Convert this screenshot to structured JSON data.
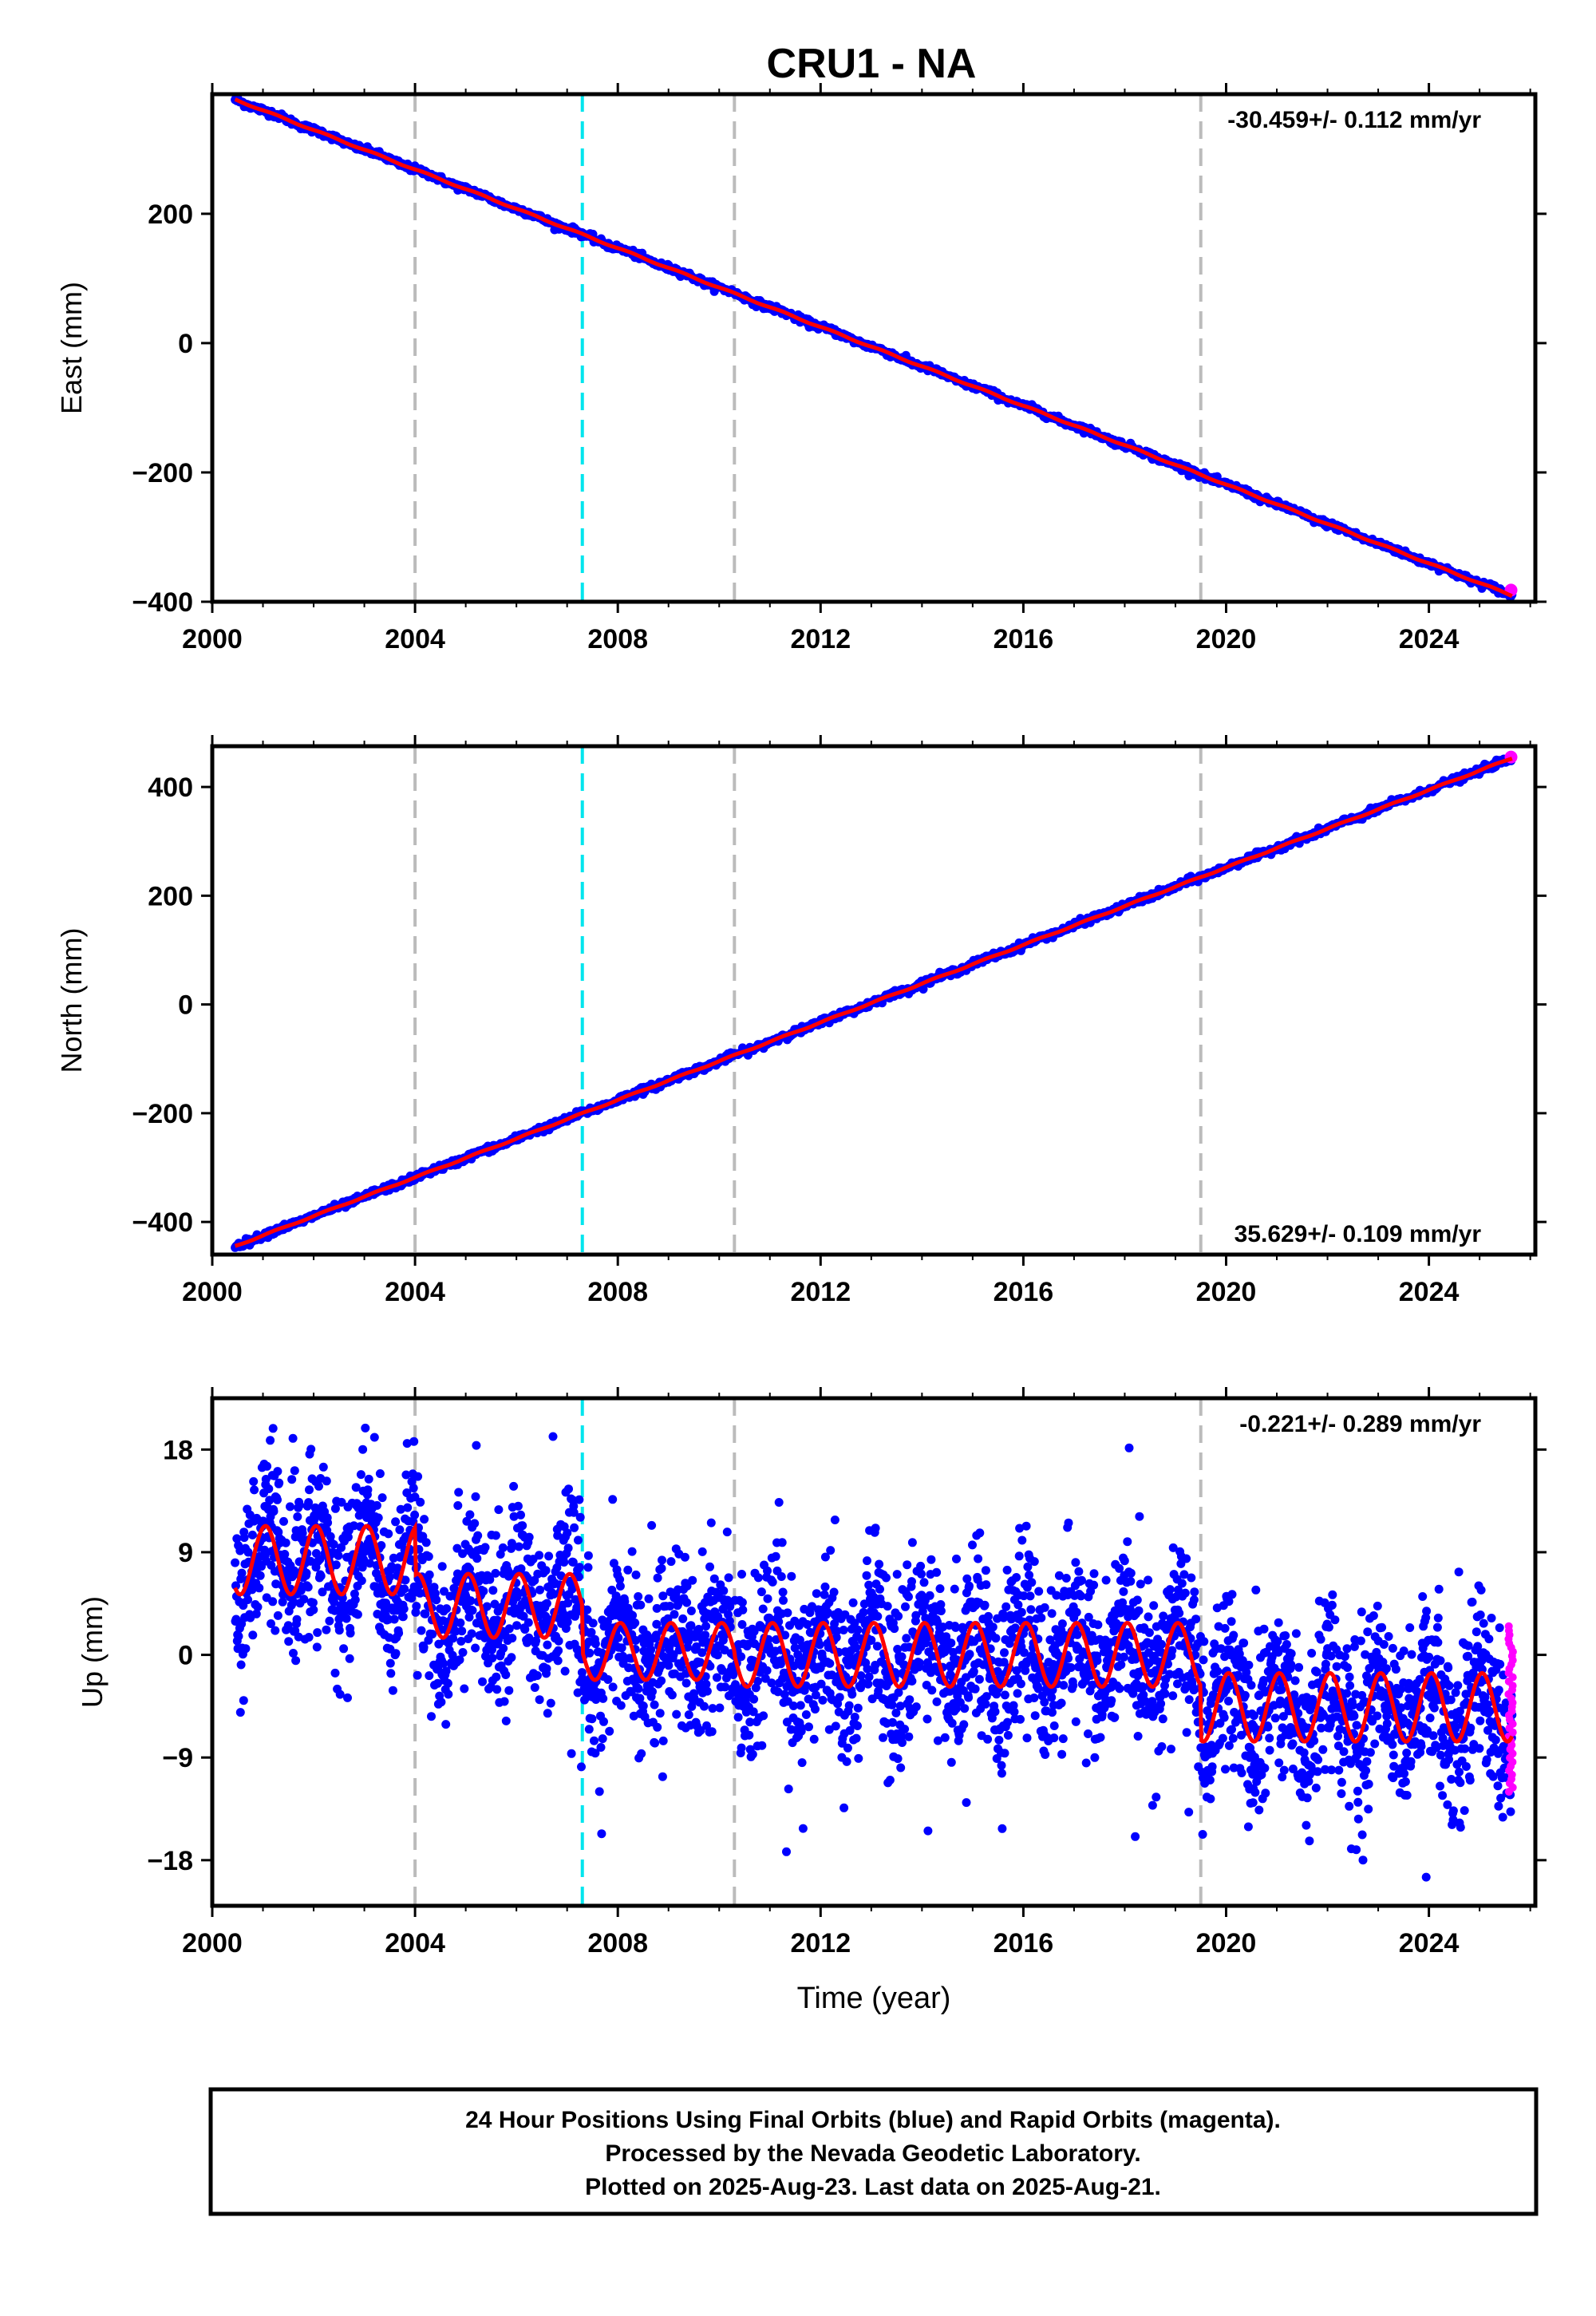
{
  "title": "CRU1 - NA",
  "colors": {
    "final": "#0000ff",
    "rapid": "#ff00ff",
    "model": "#ff0000",
    "event_gray": "#bbbbbb",
    "event_cyan": "#00e5ee"
  },
  "chart_data": [
    {
      "type": "scatter",
      "ylabel": "East (mm)",
      "xlabel": "",
      "rate_text": "-30.459+/- 0.112 mm/yr",
      "xlim": [
        2000,
        2026.1
      ],
      "ylim": [
        -400,
        385
      ],
      "yticks": [
        200,
        0,
        -200,
        -400
      ],
      "ytick_labels": [
        "200",
        "0",
        "−200",
        "−400"
      ],
      "xticks": [
        2000,
        2004,
        2008,
        2012,
        2016,
        2020,
        2024
      ],
      "xtick_labels": [
        "2000",
        "2004",
        "2008",
        "2012",
        "2016",
        "2020",
        "2024"
      ],
      "model": {
        "start": 2000.45,
        "end": 2025.64,
        "y0": 376.8,
        "rate": -30.459,
        "seasonal_amp": 1.0
      },
      "noise_mm": 2.5,
      "rapid_last": {
        "x": 2025.62,
        "y": -382
      },
      "events_gray": [
        2004.0,
        2010.3,
        2019.5
      ],
      "events_cyan": [
        2007.3
      ]
    },
    {
      "type": "scatter",
      "ylabel": "North (mm)",
      "xlabel": "",
      "rate_text": "35.629+/- 0.109 mm/yr",
      "xlim": [
        2000,
        2026.1
      ],
      "ylim": [
        -460,
        475
      ],
      "yticks": [
        400,
        200,
        0,
        -200,
        -400
      ],
      "ytick_labels": [
        "400",
        "200",
        "0",
        "−200",
        "−400"
      ],
      "xticks": [
        2000,
        2004,
        2008,
        2012,
        2016,
        2020,
        2024
      ],
      "xtick_labels": [
        "2000",
        "2004",
        "2008",
        "2012",
        "2016",
        "2020",
        "2024"
      ],
      "model": {
        "start": 2000.45,
        "end": 2025.64,
        "y0": -444.5,
        "rate": 35.629,
        "seasonal_amp": 1.0
      },
      "noise_mm": 3.0,
      "rapid_last": {
        "x": 2025.62,
        "y": 455
      },
      "events_gray": [
        2004.0,
        2010.3,
        2019.5
      ],
      "events_cyan": [
        2007.3
      ]
    },
    {
      "type": "scatter",
      "ylabel": "Up (mm)",
      "xlabel": "Time (year)",
      "rate_text": "-0.221+/- 0.289 mm/yr",
      "xlim": [
        2000,
        2026.1
      ],
      "ylim": [
        -22,
        22.5
      ],
      "yticks": [
        18,
        9,
        0,
        -9,
        -18
      ],
      "ytick_labels": [
        "18",
        "9",
        "0",
        "−9",
        "−18"
      ],
      "xticks": [
        2000,
        2004,
        2008,
        2012,
        2016,
        2020,
        2024
      ],
      "xtick_labels": [
        "2000",
        "2004",
        "2008",
        "2012",
        "2016",
        "2020",
        "2024"
      ],
      "model_segments": [
        {
          "start": 2000.45,
          "end": 2004.0,
          "offset": 8.3,
          "amp": 3.0
        },
        {
          "start": 2004.0,
          "end": 2007.3,
          "offset": 4.3,
          "amp": 2.8
        },
        {
          "start": 2007.3,
          "end": 2010.3,
          "offset": 0.3,
          "amp": 2.5
        },
        {
          "start": 2010.3,
          "end": 2019.5,
          "offset": 0.0,
          "amp": 2.8
        },
        {
          "start": 2019.5,
          "end": 2025.64,
          "offset": -4.6,
          "amp": 3.0
        }
      ],
      "seasonal_phase": 0.8,
      "noise_mm": 3.6,
      "rapid_points": {
        "x_start": 2025.57,
        "x_end": 2025.66,
        "y_min": -12,
        "y_max": 2.5,
        "count": 40
      },
      "events_gray": [
        2004.0,
        2010.3,
        2019.5
      ],
      "events_cyan": [
        2007.3
      ]
    }
  ],
  "footer": {
    "line1": "24 Hour Positions Using Final Orbits (blue) and Rapid Orbits (magenta).",
    "line2": "Processed by the Nevada Geodetic Laboratory.",
    "line3": "Plotted on 2025-Aug-23. Last data on 2025-Aug-21."
  }
}
